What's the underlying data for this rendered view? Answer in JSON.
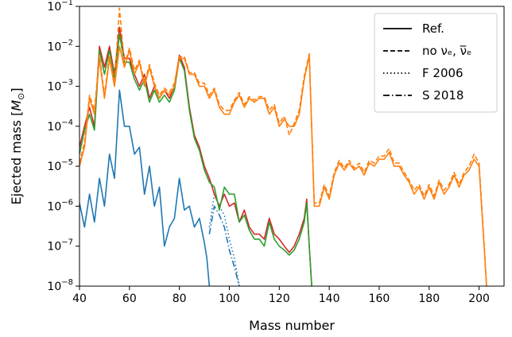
{
  "chart_data": {
    "type": "line",
    "title": "",
    "xlabel": "Mass number",
    "ylabel": "Ejected mass [M_⊙]",
    "ylabel_parts": {
      "prefix": "Ejected mass [",
      "symbol": "M",
      "subscript": "⊙",
      "suffix": "]"
    },
    "x_scale": "linear",
    "y_scale": "log",
    "xlim": [
      40,
      210
    ],
    "ylim": [
      1e-08,
      0.1
    ],
    "x_ticks": [
      40,
      60,
      80,
      100,
      120,
      140,
      160,
      180,
      200
    ],
    "y_ticks": [
      {
        "value": 1e-08,
        "label_base": "10",
        "label_exp": "−8"
      },
      {
        "value": 1e-07,
        "label_base": "10",
        "label_exp": "−7"
      },
      {
        "value": 1e-06,
        "label_base": "10",
        "label_exp": "−6"
      },
      {
        "value": 1e-05,
        "label_base": "10",
        "label_exp": "−5"
      },
      {
        "value": 0.0001,
        "label_base": "10",
        "label_exp": "−4"
      },
      {
        "value": 0.001,
        "label_base": "10",
        "label_exp": "−3"
      },
      {
        "value": 0.01,
        "label_base": "10",
        "label_exp": "−2"
      },
      {
        "value": 0.1,
        "label_base": "10",
        "label_exp": "−1"
      }
    ],
    "grid": false,
    "legend_position": "top-right",
    "legend": [
      {
        "label": "Ref.",
        "style": "solid"
      },
      {
        "label": "no νₑ, ν̅ₑ",
        "style": "dashed"
      },
      {
        "label": "F 2006",
        "style": "dotted"
      },
      {
        "label": "S 2018",
        "style": "dashdot"
      }
    ],
    "series": [
      {
        "color": "#1f77b4",
        "style": "solid",
        "x": [
          40,
          42,
          44,
          46,
          48,
          50,
          52,
          54,
          56,
          58,
          60,
          62,
          64,
          66,
          68,
          70,
          72,
          74,
          76,
          78,
          80,
          82,
          84,
          86,
          88,
          90,
          91,
          92
        ],
        "y": [
          1.2e-06,
          3e-07,
          2e-06,
          4e-07,
          5e-06,
          1e-06,
          2e-05,
          5e-06,
          0.0008,
          0.0001,
          0.0001,
          2e-05,
          3e-05,
          2e-06,
          1e-05,
          1e-06,
          3e-06,
          1e-07,
          3e-07,
          5e-07,
          5e-06,
          8e-07,
          1e-06,
          3e-07,
          5e-07,
          1.2e-07,
          5e-08,
          1e-08
        ]
      },
      {
        "color": "#1f77b4",
        "style": "dotted",
        "x": [
          92,
          94,
          96,
          98,
          100,
          102,
          104
        ],
        "y": [
          3e-07,
          2e-06,
          1e-06,
          6e-07,
          1.5e-07,
          5e-08,
          1e-08
        ]
      },
      {
        "color": "#1f77b4",
        "style": "dashdot",
        "x": [
          92,
          94,
          96,
          98,
          100,
          102,
          104
        ],
        "y": [
          2e-07,
          1e-06,
          6e-07,
          3e-07,
          8e-08,
          3e-08,
          1e-08
        ]
      },
      {
        "color": "#d62728",
        "style": "solid",
        "x": [
          40,
          42,
          44,
          46,
          48,
          50,
          52,
          54,
          56,
          58,
          60,
          62,
          64,
          66,
          68,
          70,
          72,
          74,
          76,
          78,
          80,
          82,
          84,
          86,
          88,
          90,
          92,
          94,
          96,
          98,
          100,
          102,
          104,
          106,
          108,
          110,
          112,
          114,
          116,
          118,
          120,
          122,
          124,
          126,
          128,
          130,
          131,
          132,
          133
        ],
        "y": [
          3e-05,
          0.0001,
          0.0003,
          0.0001,
          0.01,
          0.003,
          0.01,
          0.002,
          0.03,
          0.005,
          0.005,
          0.002,
          0.001,
          0.002,
          0.0005,
          0.001,
          0.0005,
          0.0008,
          0.0005,
          0.001,
          0.006,
          0.003,
          0.0003,
          6e-05,
          3e-05,
          1e-05,
          5e-06,
          2e-06,
          1e-06,
          2e-06,
          1e-06,
          1.2e-06,
          4e-07,
          8e-07,
          3e-07,
          2e-07,
          2e-07,
          1.5e-07,
          5e-07,
          2e-07,
          1.5e-07,
          1e-07,
          7e-08,
          1e-07,
          2e-07,
          5e-07,
          1.5e-06,
          1e-07,
          1e-08
        ]
      },
      {
        "color": "#2ca02c",
        "style": "solid",
        "x": [
          40,
          42,
          44,
          46,
          48,
          50,
          52,
          54,
          56,
          58,
          60,
          62,
          64,
          66,
          68,
          70,
          72,
          74,
          76,
          78,
          80,
          82,
          84,
          86,
          88,
          90,
          92,
          94,
          96,
          98,
          100,
          102,
          104,
          106,
          108,
          110,
          112,
          114,
          116,
          118,
          120,
          122,
          124,
          126,
          128,
          130,
          131,
          132,
          133
        ],
        "y": [
          2e-05,
          8e-05,
          0.0002,
          8e-05,
          0.008,
          0.002,
          0.008,
          0.0015,
          0.02,
          0.004,
          0.004,
          0.0015,
          0.0008,
          0.0015,
          0.0004,
          0.0008,
          0.0004,
          0.0006,
          0.0004,
          0.0008,
          0.005,
          0.0025,
          0.00025,
          5e-05,
          2.5e-05,
          8e-06,
          4e-06,
          3e-06,
          8e-07,
          3e-06,
          2e-06,
          2e-06,
          4e-07,
          6e-07,
          2.5e-07,
          1.5e-07,
          1.5e-07,
          1e-07,
          4e-07,
          1.5e-07,
          1e-07,
          8e-08,
          6e-08,
          8e-08,
          1.5e-07,
          4e-07,
          1.2e-06,
          1e-07,
          1e-08
        ]
      },
      {
        "color": "#ff7f0e",
        "style": "solid",
        "x": [
          40,
          42,
          44,
          46,
          48,
          50,
          52,
          54,
          56,
          58,
          60,
          62,
          64,
          66,
          68,
          70,
          72,
          74,
          76,
          78,
          80,
          82,
          84,
          86,
          88,
          90,
          92,
          94,
          96,
          98,
          100,
          102,
          104,
          106,
          108,
          110,
          112,
          114,
          116,
          118,
          120,
          122,
          124,
          126,
          128,
          130,
          132,
          134,
          136,
          138,
          140,
          142,
          144,
          146,
          148,
          150,
          152,
          154,
          156,
          158,
          160,
          162,
          164,
          166,
          168,
          170,
          172,
          174,
          176,
          178,
          180,
          182,
          184,
          186,
          188,
          190,
          192,
          194,
          196,
          198,
          200,
          201,
          202,
          203
        ],
        "y": [
          1e-05,
          3e-05,
          0.0005,
          0.0002,
          0.005,
          0.0005,
          0.005,
          0.001,
          0.01,
          0.003,
          0.008,
          0.002,
          0.004,
          0.001,
          0.003,
          0.001,
          0.0005,
          0.0008,
          0.0006,
          0.001,
          0.005,
          0.005,
          0.002,
          0.002,
          0.001,
          0.001,
          0.0005,
          0.0008,
          0.0003,
          0.0002,
          0.0002,
          0.0004,
          0.0006,
          0.0003,
          0.0005,
          0.0004,
          0.0005,
          0.0005,
          0.0002,
          0.0003,
          0.0001,
          0.00015,
          0.0001,
          0.0001,
          0.0002,
          0.0015,
          0.006,
          1e-06,
          1e-06,
          3e-06,
          1.5e-06,
          6e-06,
          1.2e-05,
          8e-06,
          1.2e-05,
          8e-06,
          1e-05,
          6e-06,
          1.2e-05,
          1e-05,
          1.5e-05,
          1.5e-05,
          2.2e-05,
          1e-05,
          1e-05,
          6e-06,
          4e-06,
          2e-06,
          3e-06,
          1.5e-06,
          3e-06,
          1.5e-06,
          4e-06,
          2e-06,
          3e-06,
          6e-06,
          3e-06,
          6e-06,
          8e-06,
          1.5e-05,
          1e-05,
          1e-06,
          1e-07,
          1e-08
        ]
      },
      {
        "color": "#ff7f0e",
        "style": "dashed",
        "x": [
          40,
          42,
          44,
          46,
          48,
          50,
          52,
          54,
          56,
          58,
          60,
          62,
          64,
          66,
          68,
          70,
          72,
          74,
          76,
          78,
          80,
          82,
          84,
          86,
          88,
          90,
          92,
          94,
          96,
          98,
          100,
          102,
          104,
          106,
          108,
          110,
          112,
          114,
          116,
          118,
          120,
          122,
          124,
          126,
          128,
          130,
          132,
          134,
          136,
          138,
          140,
          142,
          144,
          146,
          148,
          150,
          152,
          154,
          156,
          158,
          160,
          162,
          164,
          166,
          168,
          170,
          172,
          174,
          176,
          178,
          180,
          182,
          184,
          186,
          188,
          190,
          192,
          194,
          196,
          198,
          200,
          201,
          202,
          203
        ],
        "y": [
          1.2e-05,
          4e-05,
          0.0006,
          0.00025,
          0.006,
          0.0006,
          0.006,
          0.0012,
          0.09,
          0.0035,
          0.009,
          0.0025,
          0.0045,
          0.0012,
          0.0035,
          0.0012,
          0.0006,
          0.0009,
          0.0007,
          0.0012,
          0.0055,
          0.0055,
          0.0022,
          0.0022,
          0.0012,
          0.0012,
          0.0006,
          0.0009,
          0.00035,
          0.00025,
          0.00025,
          0.00045,
          0.0007,
          0.00035,
          0.00055,
          0.00045,
          0.00055,
          0.00055,
          0.00025,
          0.00035,
          0.00012,
          0.00018,
          6e-05,
          0.00012,
          0.00025,
          0.0018,
          0.0065,
          1.2e-06,
          1.2e-06,
          3.5e-06,
          1.8e-06,
          7e-06,
          1.4e-05,
          9e-06,
          1.4e-05,
          9e-06,
          1.2e-05,
          7e-06,
          1.4e-05,
          1.2e-05,
          1.8e-05,
          1.8e-05,
          2.8e-05,
          1.2e-05,
          1.2e-05,
          7e-06,
          4.5e-06,
          2.5e-06,
          3.5e-06,
          1.8e-06,
          3.5e-06,
          1.8e-06,
          4.5e-06,
          2.5e-06,
          3.5e-06,
          7e-06,
          3.5e-06,
          7e-06,
          1e-05,
          2e-05,
          1.2e-05,
          1.2e-06,
          1.2e-07,
          1e-08
        ]
      }
    ]
  }
}
